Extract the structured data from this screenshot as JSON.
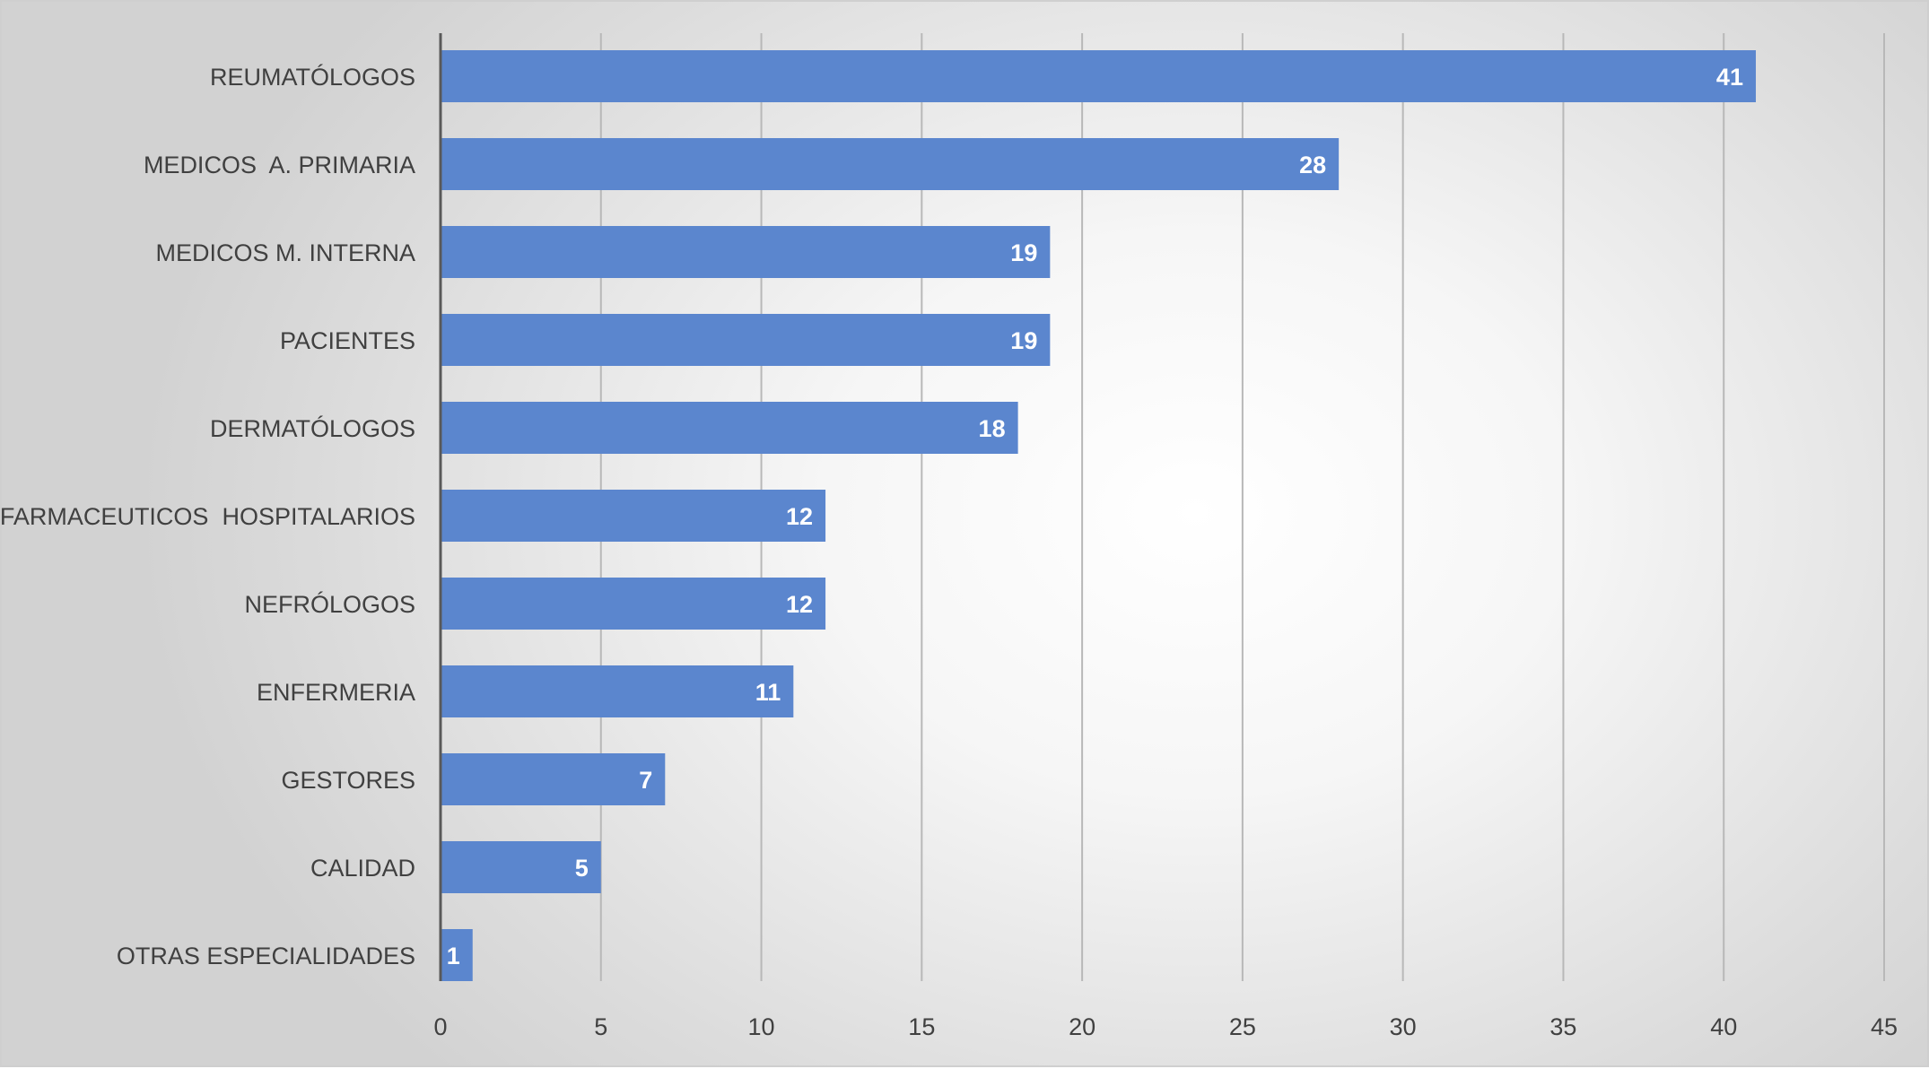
{
  "chart_data": {
    "type": "bar",
    "orientation": "horizontal",
    "categories": [
      "REUMATÓLOGOS",
      "MEDICOS  A. PRIMARIA",
      "MEDICOS M. INTERNA",
      "PACIENTES",
      "DERMATÓLOGOS",
      "FARMACEUTICOS  HOSPITALARIOS",
      "NEFRÓLOGOS",
      "ENFERMERIA",
      "GESTORES",
      "CALIDAD",
      "OTRAS ESPECIALIDADES"
    ],
    "values": [
      41,
      28,
      19,
      19,
      18,
      12,
      12,
      11,
      7,
      5,
      1
    ],
    "data_labels": [
      "41",
      "28",
      "19",
      "19",
      "18",
      "12",
      "12",
      "11",
      "7",
      "5",
      "1"
    ],
    "xlim": [
      0,
      45
    ],
    "x_ticks": [
      0,
      5,
      10,
      15,
      20,
      25,
      30,
      35,
      40,
      45
    ],
    "x_tick_labels": [
      "0",
      "5",
      "10",
      "15",
      "20",
      "25",
      "30",
      "35",
      "40",
      "45"
    ],
    "grid": "vertical",
    "legend": "none",
    "colors": {
      "bar": "#5b86ce",
      "grid": "#b8b8b8",
      "axis": "#595959"
    }
  }
}
